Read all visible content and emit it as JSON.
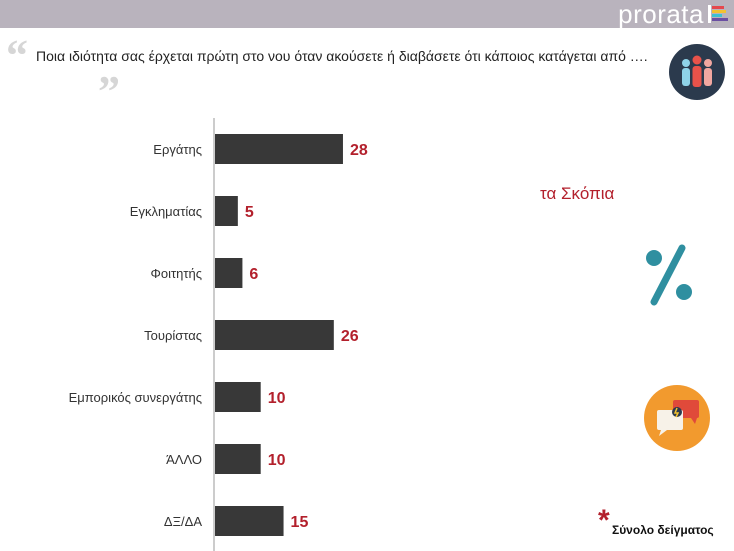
{
  "header": {
    "brand": "prorata"
  },
  "question": "Ποια ιδιότητα σας έρχεται πρώτη στο νου όταν ακούσετε ή διαβάσετε ότι κάποιος κατάγεται από ….",
  "quote_open": "“",
  "quote_close": "”",
  "location": "τα Σκόπια",
  "footnote": {
    "star": "*",
    "text": "Σύνολο δείγματος"
  },
  "icons": [
    "people-icon",
    "percent-icon",
    "chat-bubbles-icon"
  ],
  "colors": {
    "bar": "#383838",
    "value": "#b3202c",
    "accent_teal": "#2f8fa0",
    "accent_orange": "#f29a2e"
  },
  "chart_data": {
    "type": "bar",
    "orientation": "horizontal",
    "categories": [
      "Εργάτης",
      "Εγκληματίας",
      "Φοιτητής",
      "Τουρίστας",
      "Εμπορικός συνεργάτης",
      "ΆΛΛΟ",
      "ΔΞ/ΔΑ"
    ],
    "values": [
      28,
      5,
      6,
      26,
      10,
      10,
      15
    ],
    "data_labels": [
      "28",
      "5",
      "6",
      "26",
      "10",
      "10",
      "15"
    ],
    "xlim": [
      0,
      100
    ],
    "grid": false,
    "legend": "none"
  }
}
